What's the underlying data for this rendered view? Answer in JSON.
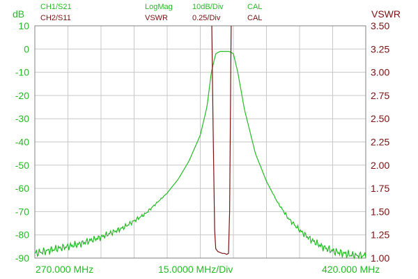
{
  "header": {
    "ch1": {
      "name": "CH1/S21",
      "format": "LogMag",
      "scale": "10dB/Div",
      "cal": "CAL"
    },
    "ch2": {
      "name": "CH2/S11",
      "format": "VSWR",
      "scale": "0.25/Div",
      "cal": "CAL"
    }
  },
  "colors": {
    "ch1": "#22bb22",
    "ch2": "#7a1010",
    "grid": "#c8c8c8",
    "text": "#000000"
  },
  "chart_data": {
    "type": "line",
    "title": "",
    "left_axis": {
      "label": "dB",
      "ylim": [
        -90,
        10
      ],
      "ticks": [
        "10",
        "0",
        "-10",
        "-20",
        "-30",
        "-40",
        "-50",
        "-60",
        "-70",
        "-80",
        "-90"
      ]
    },
    "right_axis": {
      "label": "VSWR",
      "ylim": [
        1.0,
        3.5
      ],
      "ticks": [
        "3.50",
        "3.25",
        "3.00",
        "2.75",
        "2.50",
        "2.25",
        "2.00",
        "1.75",
        "1.50",
        "1.25",
        "1.00"
      ]
    },
    "x_axis": {
      "start_label": "270.000 MHz",
      "scale_label": "15.0000 MHz/Div",
      "stop_label": "420.000 MHz",
      "xlim": [
        270,
        420
      ]
    },
    "grid": true,
    "series": [
      {
        "name": "CH1/S21",
        "axis": "left",
        "unit": "dB",
        "x": [
          270,
          280,
          290,
          300,
          310,
          320,
          330,
          335,
          340,
          345,
          348,
          350,
          352,
          354,
          356,
          358,
          360,
          362,
          365,
          370,
          375,
          380,
          385,
          390,
          395,
          400,
          405,
          410,
          415,
          420
        ],
        "y": [
          -88,
          -86,
          -84,
          -81,
          -77,
          -71,
          -62,
          -56,
          -48,
          -37,
          -25,
          -10,
          -2,
          -1,
          -1,
          -1,
          -2,
          -10,
          -26,
          -45,
          -57,
          -66,
          -73,
          -78,
          -82,
          -85,
          -87,
          -88,
          -89,
          -89
        ]
      },
      {
        "name": "CH2/S11",
        "axis": "right",
        "unit": "VSWR",
        "x": [
          350.2,
          350.8,
          351.5,
          352,
          353,
          354,
          355,
          356,
          357,
          357.8,
          358.3,
          359
        ],
        "y": [
          3.5,
          2.4,
          1.3,
          1.1,
          1.07,
          1.06,
          1.05,
          1.05,
          1.04,
          1.05,
          1.5,
          3.5
        ]
      }
    ]
  }
}
